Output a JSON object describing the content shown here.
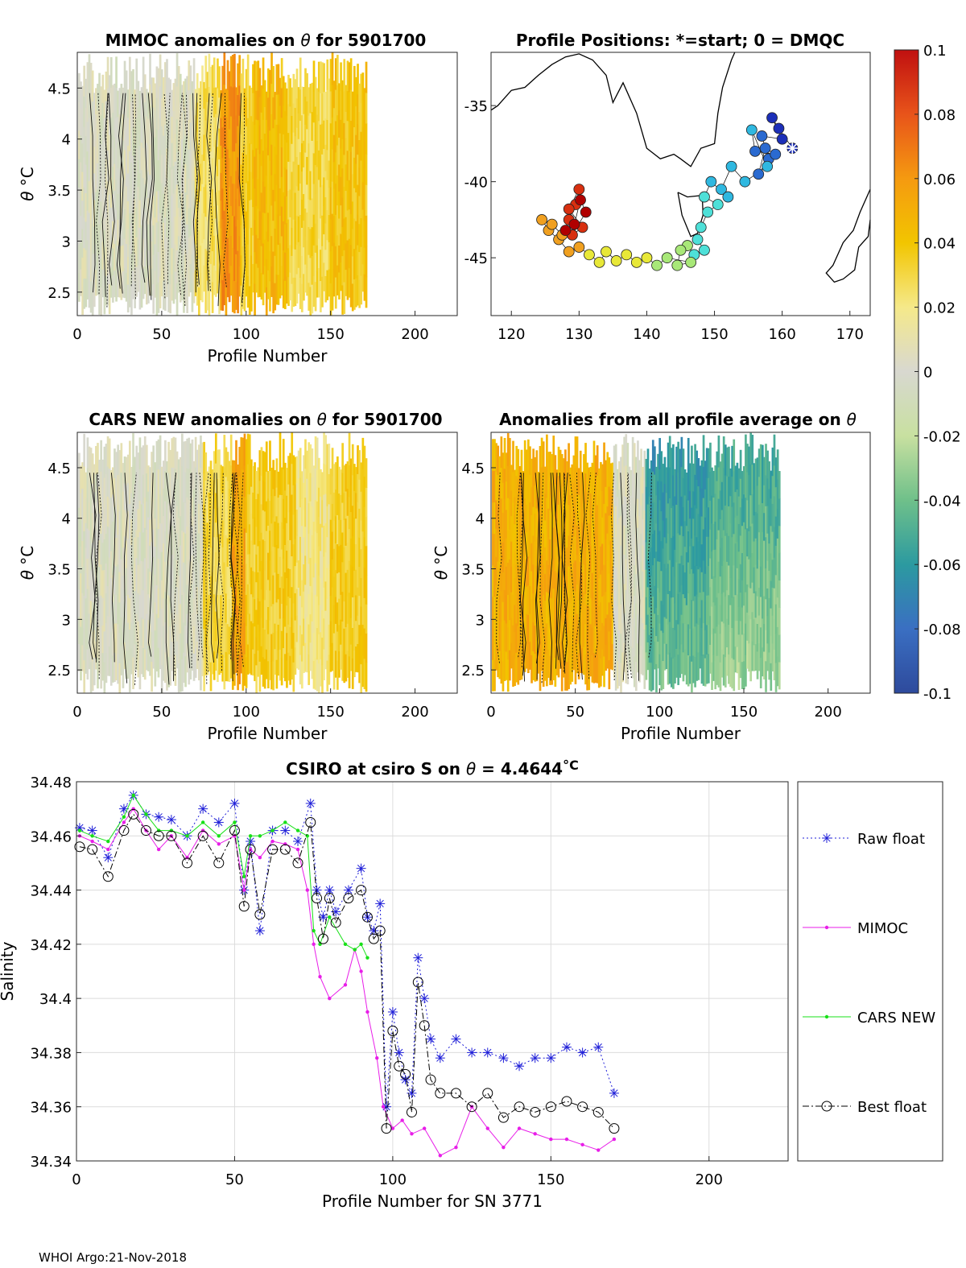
{
  "chart_data": [
    {
      "id": "mimoc",
      "type": "heatmap",
      "title_prefix": "MIMOC anomalies on ",
      "title_theta": "θ",
      "title_suffix": "  for 5901700",
      "xlabel": "Profile Number",
      "ylabel_theta": "θ",
      "ylabel_unit": " °C",
      "xlim": [
        0,
        225
      ],
      "ylim": [
        2.27,
        4.85
      ],
      "xticks": [
        0,
        50,
        100,
        150,
        200
      ],
      "yticks": [
        2.5,
        3,
        3.5,
        4,
        4.5
      ],
      "ytick_labels": [
        "2.5",
        "3",
        "3.5",
        "4",
        "4.5"
      ],
      "profiles": [
        1,
        171
      ],
      "bands": [
        {
          "x": [
            0,
            70
          ],
          "anomaly": 0.0
        },
        {
          "x": [
            70,
            85
          ],
          "anomaly": 0.025
        },
        {
          "x": [
            85,
            97
          ],
          "anomaly": 0.06
        },
        {
          "x": [
            97,
            105
          ],
          "anomaly": 0.035
        },
        {
          "x": [
            105,
            125
          ],
          "anomaly": 0.045
        },
        {
          "x": [
            125,
            150
          ],
          "anomaly": 0.03
        },
        {
          "x": [
            150,
            171
          ],
          "anomaly": 0.04
        }
      ]
    },
    {
      "id": "positions",
      "type": "scatter",
      "title": "Profile Positions: *=start; 0 = DMQC",
      "xlim": [
        117,
        173
      ],
      "ylim": [
        -48.8,
        -31.5
      ],
      "xticks": [
        120,
        130,
        140,
        150,
        160,
        170
      ],
      "yticks": [
        -35,
        -40,
        -45
      ],
      "ytick_labels": [
        "-35",
        "-40",
        "-45"
      ],
      "start": {
        "lon": 161.5,
        "lat": -37.8
      },
      "track": [
        {
          "lon": 161.5,
          "lat": -37.8
        },
        {
          "lon": 159.5,
          "lat": -36.5
        },
        {
          "lon": 158.5,
          "lat": -35.8
        },
        {
          "lon": 160.0,
          "lat": -37.2
        },
        {
          "lon": 157.0,
          "lat": -37.0
        },
        {
          "lon": 158.0,
          "lat": -38.5
        },
        {
          "lon": 156.5,
          "lat": -39.5
        },
        {
          "lon": 157.5,
          "lat": -37.8
        },
        {
          "lon": 159.0,
          "lat": -38.2
        },
        {
          "lon": 156.0,
          "lat": -38.0
        },
        {
          "lon": 155.5,
          "lat": -36.6
        },
        {
          "lon": 157.8,
          "lat": -39.0
        },
        {
          "lon": 154.5,
          "lat": -40.0
        },
        {
          "lon": 152.5,
          "lat": -39.0
        },
        {
          "lon": 151.0,
          "lat": -40.5
        },
        {
          "lon": 152.0,
          "lat": -41.0
        },
        {
          "lon": 149.5,
          "lat": -40.0
        },
        {
          "lon": 148.5,
          "lat": -41.0
        },
        {
          "lon": 150.5,
          "lat": -41.5
        },
        {
          "lon": 149.0,
          "lat": -42.0
        },
        {
          "lon": 148.0,
          "lat": -43.0
        },
        {
          "lon": 147.5,
          "lat": -43.8
        },
        {
          "lon": 148.5,
          "lat": -44.5
        },
        {
          "lon": 147.0,
          "lat": -44.8
        },
        {
          "lon": 146.0,
          "lat": -44.2
        },
        {
          "lon": 145.0,
          "lat": -44.5
        },
        {
          "lon": 144.5,
          "lat": -45.5
        },
        {
          "lon": 146.5,
          "lat": -45.3
        },
        {
          "lon": 143.0,
          "lat": -45.0
        },
        {
          "lon": 141.5,
          "lat": -45.5
        },
        {
          "lon": 140.0,
          "lat": -45.0
        },
        {
          "lon": 138.5,
          "lat": -45.3
        },
        {
          "lon": 137.0,
          "lat": -44.8
        },
        {
          "lon": 135.5,
          "lat": -45.2
        },
        {
          "lon": 134.0,
          "lat": -44.6
        },
        {
          "lon": 133.0,
          "lat": -45.3
        },
        {
          "lon": 131.5,
          "lat": -44.8
        },
        {
          "lon": 130.0,
          "lat": -44.3
        },
        {
          "lon": 128.5,
          "lat": -44.6
        },
        {
          "lon": 127.0,
          "lat": -43.8
        },
        {
          "lon": 125.5,
          "lat": -43.2
        },
        {
          "lon": 124.5,
          "lat": -42.5
        },
        {
          "lon": 126.0,
          "lat": -42.8
        },
        {
          "lon": 127.5,
          "lat": -43.5
        },
        {
          "lon": 128.5,
          "lat": -42.5
        },
        {
          "lon": 129.5,
          "lat": -41.5
        },
        {
          "lon": 130.0,
          "lat": -40.5
        },
        {
          "lon": 128.5,
          "lat": -41.8
        },
        {
          "lon": 130.5,
          "lat": -43.0
        },
        {
          "lon": 129.0,
          "lat": -43.5
        },
        {
          "lon": 131.0,
          "lat": -42.0
        },
        {
          "lon": 130.2,
          "lat": -41.2
        },
        {
          "lon": 129.3,
          "lat": -42.8
        },
        {
          "lon": 128.0,
          "lat": -43.2
        }
      ]
    },
    {
      "id": "cars",
      "type": "heatmap",
      "title_prefix": "CARS NEW anomalies on ",
      "title_theta": "θ",
      "title_suffix": " for 5901700",
      "xlabel": "Profile Number",
      "ylabel_theta": "θ",
      "ylabel_unit": " °C",
      "xlim": [
        0,
        225
      ],
      "ylim": [
        2.27,
        4.85
      ],
      "xticks": [
        0,
        50,
        100,
        150,
        200
      ],
      "yticks": [
        2.5,
        3,
        3.5,
        4,
        4.5
      ],
      "ytick_labels": [
        "2.5",
        "3",
        "3.5",
        "4",
        "4.5"
      ],
      "profiles": [
        1,
        171
      ],
      "bands": [
        {
          "x": [
            0,
            75
          ],
          "anomaly": 0.0
        },
        {
          "x": [
            75,
            92
          ],
          "anomaly": 0.03
        },
        {
          "x": [
            92,
            100
          ],
          "anomaly": 0.055
        },
        {
          "x": [
            100,
            130
          ],
          "anomaly": 0.035
        },
        {
          "x": [
            130,
            150
          ],
          "anomaly": 0.02
        },
        {
          "x": [
            150,
            171
          ],
          "anomaly": 0.035
        }
      ]
    },
    {
      "id": "allavg",
      "type": "heatmap",
      "title_prefix": "Anomalies from all profile average on ",
      "title_theta": "θ",
      "title_suffix": "",
      "xlabel": "Profile Number",
      "ylabel_theta": "θ",
      "ylabel_unit": " °C",
      "xlim": [
        0,
        225
      ],
      "ylim": [
        2.27,
        4.85
      ],
      "xticks": [
        0,
        50,
        100,
        150,
        200
      ],
      "yticks": [
        2.5,
        3,
        3.5,
        4,
        4.5
      ],
      "ytick_labels": [
        "2.5",
        "3",
        "3.5",
        "4",
        "4.5"
      ],
      "profiles": [
        1,
        171
      ],
      "bands": [
        {
          "x": [
            0,
            73
          ],
          "anomaly": 0.05
        },
        {
          "x": [
            73,
            92
          ],
          "anomaly": 0.0
        },
        {
          "x": [
            92,
            130
          ],
          "anomaly": -0.04
        },
        {
          "x": [
            130,
            171
          ],
          "anomaly": -0.03
        }
      ]
    },
    {
      "id": "colorbar",
      "type": "colorbar",
      "range": [
        -0.1,
        0.1
      ],
      "ticks": [
        "0.1",
        "0.08",
        "0.06",
        "0.04",
        "0.02",
        "0",
        "-0.02",
        "-0.04",
        "-0.06",
        "-0.08",
        "-0.1"
      ],
      "tick_values": [
        0.1,
        0.08,
        0.06,
        0.04,
        0.02,
        0,
        -0.02,
        -0.04,
        -0.06,
        -0.08,
        -0.1
      ],
      "stops": [
        "#2e4a9c",
        "#3a6fc2",
        "#2c9aa0",
        "#6fc08a",
        "#c8e0a0",
        "#d8d8d0",
        "#f5e98a",
        "#f2c500",
        "#f59a10",
        "#e8541a",
        "#c01010"
      ]
    },
    {
      "id": "salinity",
      "type": "line",
      "title_prefix": "CSIRO at csiro S on ",
      "title_theta": "θ",
      "title_value": " = 4.4644",
      "title_unit": "°C",
      "xlabel": "Profile Number for SN 3771",
      "ylabel": "Salinity",
      "xlim": [
        0,
        225
      ],
      "ylim": [
        34.34,
        34.48
      ],
      "xticks": [
        0,
        50,
        100,
        150,
        200
      ],
      "yticks": [
        34.34,
        34.36,
        34.38,
        34.4,
        34.42,
        34.44,
        34.46,
        34.48
      ],
      "ytick_labels": [
        "34.34",
        "34.36",
        "34.38",
        "34.4",
        "34.42",
        "34.44",
        "34.46",
        "34.48"
      ],
      "series": [
        {
          "name": "Raw float",
          "color": "#1f1fd8",
          "x": [
            1,
            5,
            10,
            15,
            18,
            22,
            26,
            30,
            35,
            40,
            45,
            50,
            53,
            55,
            58,
            62,
            66,
            70,
            74,
            76,
            78,
            80,
            82,
            86,
            90,
            92,
            94,
            96,
            98,
            100,
            102,
            104,
            106,
            108,
            110,
            112,
            115,
            120,
            125,
            130,
            135,
            140,
            145,
            150,
            155,
            160,
            165,
            170
          ],
          "y": [
            34.463,
            34.462,
            34.452,
            34.47,
            34.475,
            34.468,
            34.467,
            34.466,
            34.46,
            34.47,
            34.465,
            34.472,
            34.44,
            34.458,
            34.425,
            34.462,
            34.462,
            34.458,
            34.472,
            34.44,
            34.43,
            34.44,
            34.432,
            34.44,
            34.448,
            34.43,
            34.425,
            34.435,
            34.36,
            34.395,
            34.38,
            34.37,
            34.365,
            34.415,
            34.4,
            34.385,
            34.378,
            34.385,
            34.38,
            34.38,
            34.378,
            34.375,
            34.378,
            34.378,
            34.382,
            34.38,
            34.382,
            34.365
          ]
        },
        {
          "name": "MIMOC",
          "color": "#e81ee8",
          "x": [
            1,
            5,
            10,
            15,
            18,
            22,
            26,
            30,
            35,
            40,
            45,
            50,
            53,
            55,
            58,
            62,
            66,
            70,
            73,
            75,
            77,
            80,
            85,
            88,
            90,
            92,
            95,
            97,
            100,
            103,
            106,
            110,
            115,
            120,
            125,
            130,
            135,
            140,
            145,
            150,
            155,
            160,
            165,
            170
          ],
          "y": [
            34.46,
            34.458,
            34.455,
            34.465,
            34.47,
            34.462,
            34.455,
            34.46,
            34.452,
            34.462,
            34.457,
            34.46,
            34.44,
            34.455,
            34.452,
            34.458,
            34.457,
            34.455,
            34.44,
            34.42,
            34.408,
            34.4,
            34.405,
            34.418,
            34.41,
            34.395,
            34.378,
            34.36,
            34.352,
            34.355,
            34.35,
            34.352,
            34.342,
            34.345,
            34.36,
            34.352,
            34.345,
            34.352,
            34.35,
            34.348,
            34.348,
            34.346,
            34.344,
            34.348
          ]
        },
        {
          "name": "CARS NEW",
          "color": "#18e018",
          "x": [
            1,
            5,
            10,
            15,
            18,
            22,
            26,
            30,
            35,
            40,
            45,
            50,
            53,
            55,
            58,
            62,
            66,
            70,
            73,
            75,
            77,
            80,
            85,
            88,
            90,
            92
          ],
          "y": [
            34.462,
            34.46,
            34.458,
            34.467,
            34.475,
            34.468,
            34.462,
            34.462,
            34.46,
            34.465,
            34.46,
            34.465,
            34.445,
            34.46,
            34.46,
            34.462,
            34.465,
            34.462,
            34.46,
            34.425,
            34.42,
            34.43,
            34.42,
            34.418,
            34.42,
            34.415
          ]
        },
        {
          "name": "Best float",
          "color": "#000000",
          "x": [
            1,
            5,
            10,
            15,
            18,
            22,
            26,
            30,
            35,
            40,
            45,
            50,
            53,
            55,
            58,
            62,
            66,
            70,
            74,
            76,
            78,
            80,
            82,
            86,
            90,
            92,
            94,
            96,
            98,
            100,
            102,
            104,
            106,
            108,
            110,
            112,
            115,
            120,
            125,
            130,
            135,
            140,
            145,
            150,
            155,
            160,
            165,
            170
          ],
          "y": [
            34.456,
            34.455,
            34.445,
            34.462,
            34.468,
            34.462,
            34.46,
            34.46,
            34.45,
            34.46,
            34.45,
            34.462,
            34.434,
            34.455,
            34.431,
            34.455,
            34.455,
            34.45,
            34.465,
            34.437,
            34.422,
            34.437,
            34.428,
            34.437,
            34.44,
            34.43,
            34.422,
            34.425,
            34.352,
            34.388,
            34.375,
            34.372,
            34.358,
            34.406,
            34.39,
            34.37,
            34.365,
            34.365,
            34.36,
            34.365,
            34.356,
            34.36,
            34.358,
            34.36,
            34.362,
            34.36,
            34.358,
            34.352
          ]
        }
      ]
    }
  ],
  "footer": {
    "text": "WHOI Argo:21-Nov-2018"
  }
}
